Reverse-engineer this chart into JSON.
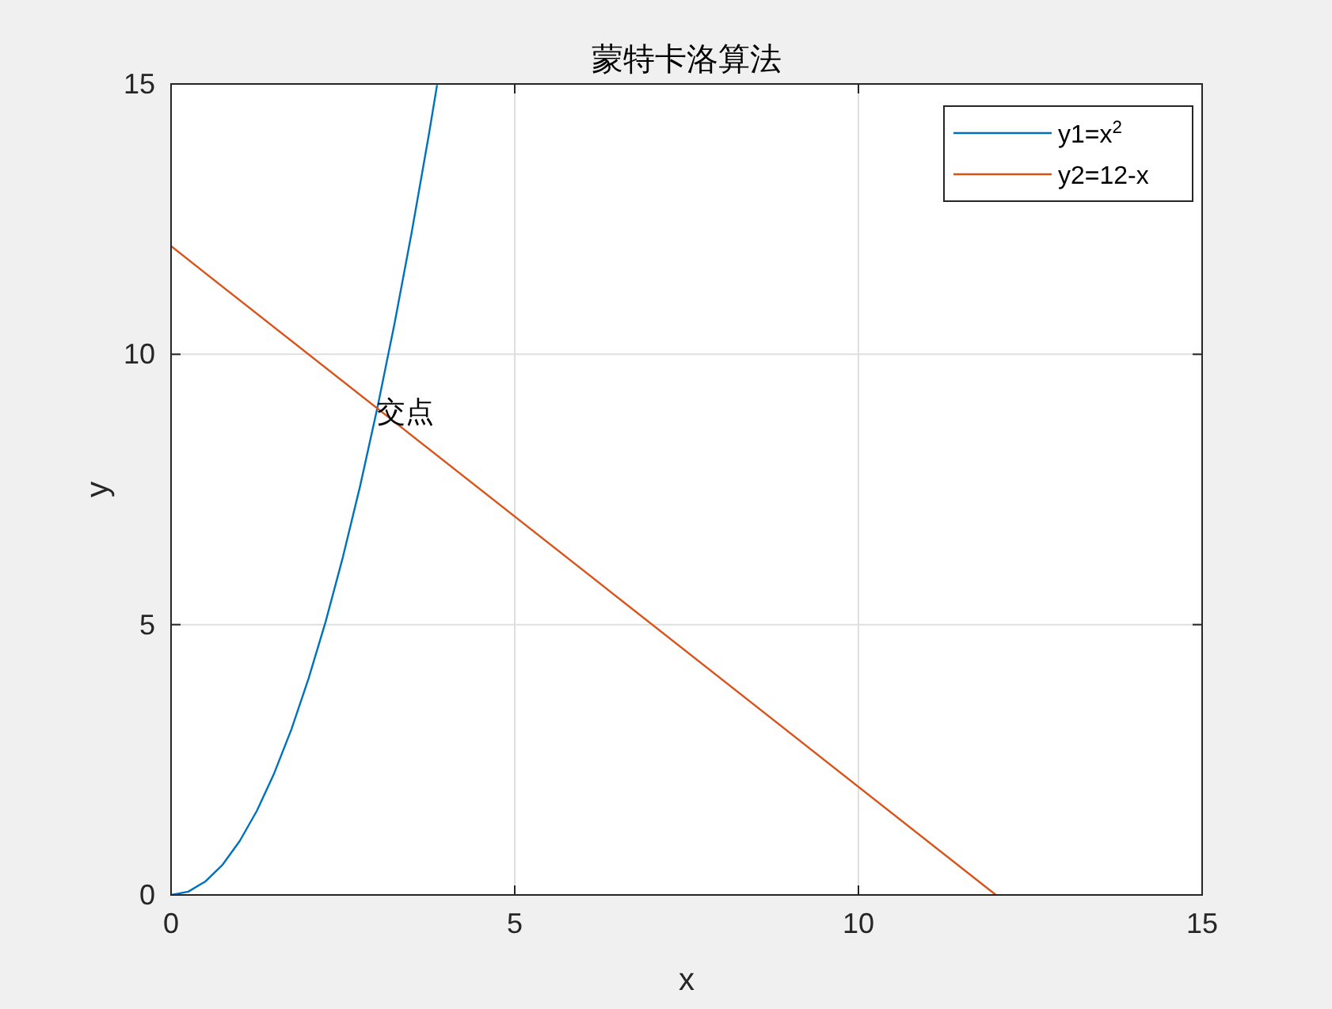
{
  "chart_data": {
    "type": "line",
    "title": "蒙特卡洛算法",
    "xlabel": "x",
    "ylabel": "y",
    "xlim": [
      0,
      15
    ],
    "ylim": [
      0,
      15
    ],
    "xticks": [
      0,
      5,
      10,
      15
    ],
    "yticks": [
      0,
      5,
      10,
      15
    ],
    "grid": true,
    "legend": "top right",
    "series": [
      {
        "name": "y1=x$^{2}$",
        "color": "#0072bd",
        "x": [
          0,
          0.25,
          0.5,
          0.75,
          1,
          1.25,
          1.5,
          1.75,
          2,
          2.25,
          2.5,
          2.75,
          3,
          3.25,
          3.5,
          3.75,
          3.87
        ],
        "values": [
          0,
          0.06,
          0.25,
          0.56,
          1,
          1.56,
          2.25,
          3.06,
          4,
          5.06,
          6.25,
          7.56,
          9,
          10.56,
          12.25,
          14.06,
          14.98
        ]
      },
      {
        "name": "y2=12-x",
        "color": "#d95319",
        "x": [
          0,
          12
        ],
        "values": [
          12,
          0
        ]
      }
    ],
    "annotations": [
      {
        "text": "交点",
        "x": 3,
        "y": 9
      }
    ]
  }
}
